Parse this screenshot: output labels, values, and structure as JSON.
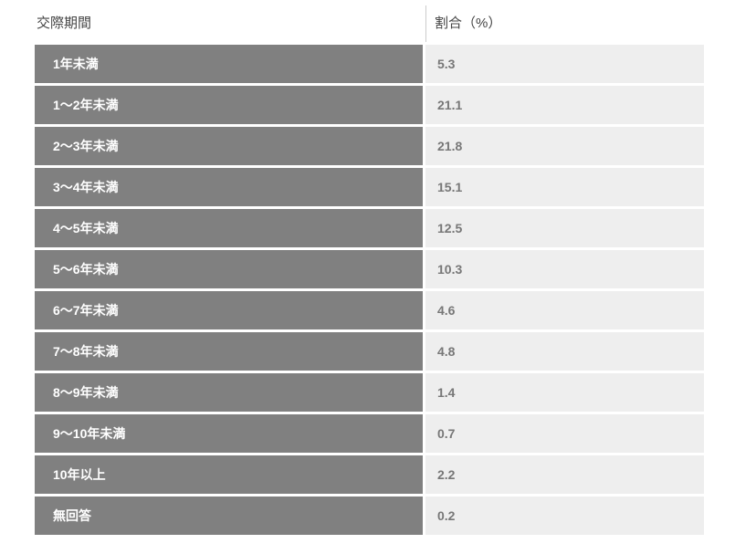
{
  "table": {
    "header": {
      "period": "交際期間",
      "percentage": "割合（%）"
    },
    "rows": [
      {
        "label": "1年未満",
        "value": "5.3"
      },
      {
        "label": "1〜2年未満",
        "value": "21.1"
      },
      {
        "label": "2〜3年未満",
        "value": "21.8"
      },
      {
        "label": "3〜4年未満",
        "value": "15.1"
      },
      {
        "label": "4〜5年未満",
        "value": "12.5"
      },
      {
        "label": "5〜6年未満",
        "value": "10.3"
      },
      {
        "label": "6〜7年未満",
        "value": "4.6"
      },
      {
        "label": "7〜8年未満",
        "value": "4.8"
      },
      {
        "label": "8〜9年未満",
        "value": "1.4"
      },
      {
        "label": "9〜10年未満",
        "value": "0.7"
      },
      {
        "label": "10年以上",
        "value": "2.2"
      },
      {
        "label": "無回答",
        "value": "0.2"
      }
    ],
    "colors": {
      "label_cell_bg": "#808080",
      "value_cell_bg": "#eeeeee",
      "label_text": "#ffffff",
      "value_text": "#777777",
      "header_text": "#444444",
      "header_divider": "#cccccc",
      "page_bg": "#ffffff"
    }
  },
  "chart_data": {
    "type": "table",
    "title": "",
    "columns": [
      "交際期間",
      "割合（%）"
    ],
    "categories": [
      "1年未満",
      "1〜2年未満",
      "2〜3年未満",
      "3〜4年未満",
      "4〜5年未満",
      "5〜6年未満",
      "6〜7年未満",
      "7〜8年未満",
      "8〜9年未満",
      "9〜10年未満",
      "10年以上",
      "無回答"
    ],
    "values": [
      5.3,
      21.1,
      21.8,
      15.1,
      12.5,
      10.3,
      4.6,
      4.8,
      1.4,
      0.7,
      2.2,
      0.2
    ],
    "xlabel": "交際期間",
    "ylabel": "割合（%）"
  }
}
